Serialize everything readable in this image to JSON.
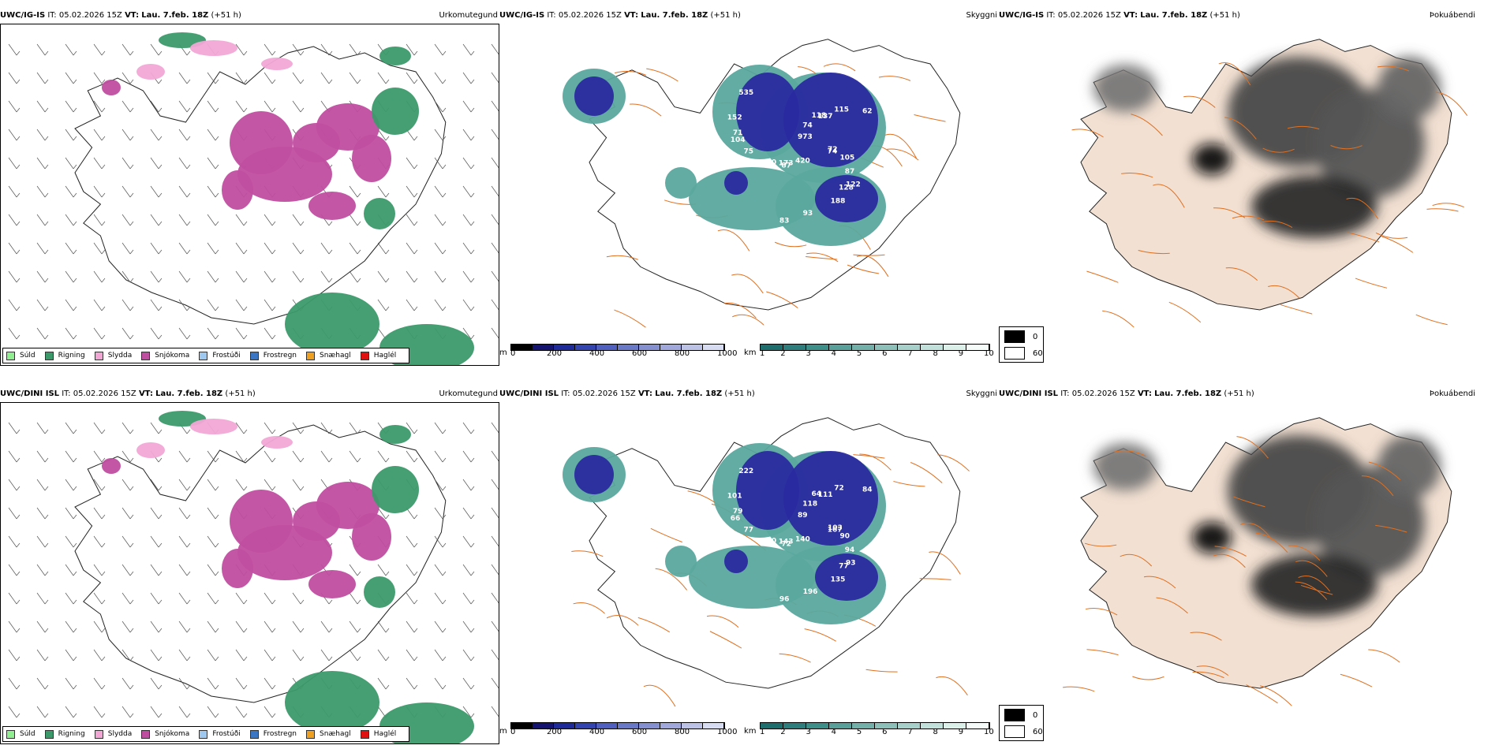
{
  "rows": [
    {
      "model": "UWC/IG-IS",
      "it_prefix": "IT:",
      "it_value": "05.02.2026 15Z",
      "vt_prefix": "VT:",
      "vt_value": "Lau. 7.feb. 18Z",
      "lead": "(+51 h)",
      "panel_labels": {
        "ptype": "Úrkomutegund",
        "vis": "Skyggni",
        "fog": "Þokuábendi"
      },
      "ceiling_labels": [
        "72",
        "87",
        "118",
        "122",
        "104",
        "80",
        "83",
        "973",
        "105",
        "110",
        "115",
        "188",
        "152",
        "357",
        "420",
        "74",
        "87",
        "75",
        "62",
        "93",
        "535",
        "74",
        "173",
        "137",
        "128",
        "71"
      ]
    },
    {
      "model": "UWC/DINI ISL",
      "it_prefix": "IT:",
      "it_value": "05.02.2026 15Z",
      "vt_prefix": "VT:",
      "vt_value": "Lau. 7.feb. 18Z",
      "lead": "(+51 h)",
      "panel_labels": {
        "ptype": "Úrkomutegund",
        "vis": "Skyggni",
        "fog": "Þokuábendi"
      },
      "ceiling_labels": [
        "103",
        "72",
        "64",
        "93",
        "66",
        "61",
        "96",
        "89",
        "90",
        "160",
        "72",
        "135",
        "101",
        "102",
        "140",
        "118",
        "94",
        "77",
        "84",
        "196",
        "222",
        "167",
        "143",
        "111",
        "77",
        "79"
      ]
    }
  ],
  "ptype_legend": [
    {
      "label": "Súld",
      "color": "#90ee90"
    },
    {
      "label": "Rigning",
      "color": "#3c9a6a"
    },
    {
      "label": "Slydda",
      "color": "#f2a6d6"
    },
    {
      "label": "Snjókoma",
      "color": "#c04ea0"
    },
    {
      "label": "Frostúði",
      "color": "#9ec8f0"
    },
    {
      "label": "Frostregn",
      "color": "#3a76c4"
    },
    {
      "label": "Snæhagl",
      "color": "#f0a020"
    },
    {
      "label": "Haglél",
      "color": "#e01010"
    }
  ],
  "ceiling_scale": {
    "unit": "m",
    "ticks": [
      "0",
      "200",
      "400",
      "600",
      "800",
      "1000"
    ],
    "colors": [
      "#000000",
      "#141470",
      "#1e2a9a",
      "#3344b0",
      "#5060c0",
      "#6a78c8",
      "#8590d0",
      "#a0a8dc",
      "#bcc2e6",
      "#d8dcf2"
    ]
  },
  "vis_scale": {
    "unit": "km",
    "ticks": [
      "1",
      "2",
      "3",
      "4",
      "5",
      "6",
      "7",
      "8",
      "9",
      "10"
    ],
    "colors": [
      "#1e6e6e",
      "#2e7e7e",
      "#3e8e8a",
      "#5aa09a",
      "#74b0aa",
      "#8ec0ba",
      "#a8d0ca",
      "#c2e0da",
      "#dcf0ea",
      "#f4fbf8"
    ]
  },
  "fog_legend": {
    "max": "0",
    "min": "60"
  },
  "colors": {
    "snow": "#c04ea0",
    "rain": "#3c9a6a",
    "sleet": "#f2a6d6",
    "ceiling": "#2a2aa0",
    "vis": "#5aa89e",
    "road": "#e07020",
    "land": "#f2e0d2",
    "fog": "#3a3a3a"
  }
}
